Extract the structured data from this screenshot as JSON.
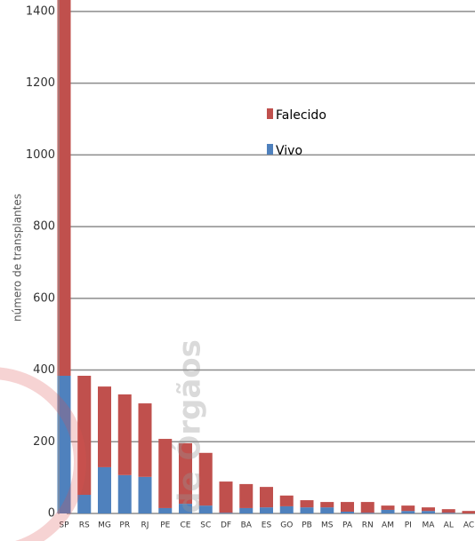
{
  "chart_data": {
    "type": "stacked_bar",
    "y_label": "número de transplantes",
    "categories": [
      "SP",
      "RS",
      "MG",
      "PR",
      "RJ",
      "PE",
      "CE",
      "SC",
      "DF",
      "BA",
      "ES",
      "GO",
      "PB",
      "MS",
      "PA",
      "RN",
      "AM",
      "PI",
      "MA",
      "AL",
      "AC"
    ],
    "series": [
      {
        "name": "Vivo",
        "color": "#4f81bd",
        "values": [
          384,
          52,
          129,
          107,
          102,
          15,
          27,
          22,
          2,
          15,
          17,
          20,
          17,
          17,
          5,
          2,
          10,
          7,
          7,
          2,
          0
        ]
      },
      {
        "name": "Falecido",
        "color": "#c0504d",
        "values": [
          1100,
          332,
          225,
          225,
          205,
          193,
          169,
          147,
          87,
          67,
          57,
          30,
          20,
          15,
          27,
          30,
          12,
          15,
          10,
          10,
          7
        ]
      }
    ],
    "ylim": [
      0,
      1432
    ],
    "yticks": [
      0,
      200,
      400,
      600,
      800,
      1000,
      1200,
      1400
    ],
    "grid": true,
    "watermark": "de Órgãos"
  }
}
